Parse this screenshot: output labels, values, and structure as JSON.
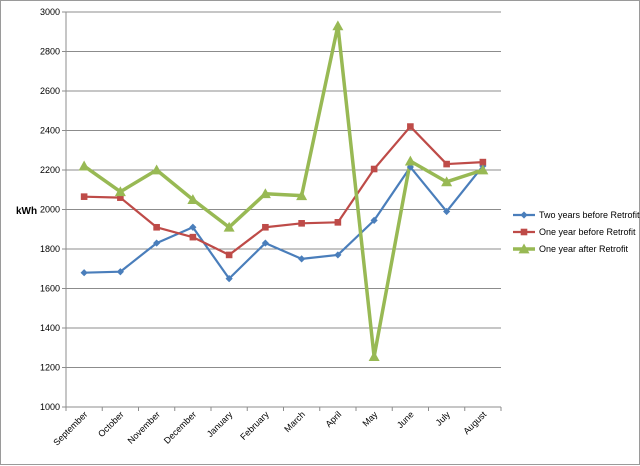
{
  "chart_data": {
    "type": "line",
    "title": "",
    "xlabel": "",
    "ylabel": "kWh",
    "ylim": [
      1000,
      3000
    ],
    "yticks": [
      1000,
      1200,
      1400,
      1600,
      1800,
      2000,
      2200,
      2400,
      2600,
      2800,
      3000
    ],
    "grid": true,
    "legend_position": "right",
    "categories": [
      "September",
      "October",
      "November",
      "December",
      "January",
      "February",
      "March",
      "April",
      "May",
      "June",
      "July",
      "August"
    ],
    "series": [
      {
        "name": "Two years before Retrofit",
        "color": "#4a7ebb",
        "marker": "diamond",
        "values": [
          1680,
          1685,
          1830,
          1910,
          1650,
          1830,
          1750,
          1770,
          1945,
          2215,
          1990,
          2220
        ]
      },
      {
        "name": "One year before Retrofit",
        "color": "#be4b48",
        "marker": "square",
        "values": [
          2065,
          2060,
          1910,
          1860,
          1770,
          1910,
          1930,
          1935,
          2205,
          2420,
          2230,
          2240
        ]
      },
      {
        "name": "One year after Retrofit",
        "color": "#98b954",
        "marker": "triangle",
        "values": [
          2220,
          2090,
          2200,
          2050,
          1910,
          2080,
          2070,
          2930,
          1255,
          2245,
          2140,
          2200
        ]
      }
    ]
  }
}
